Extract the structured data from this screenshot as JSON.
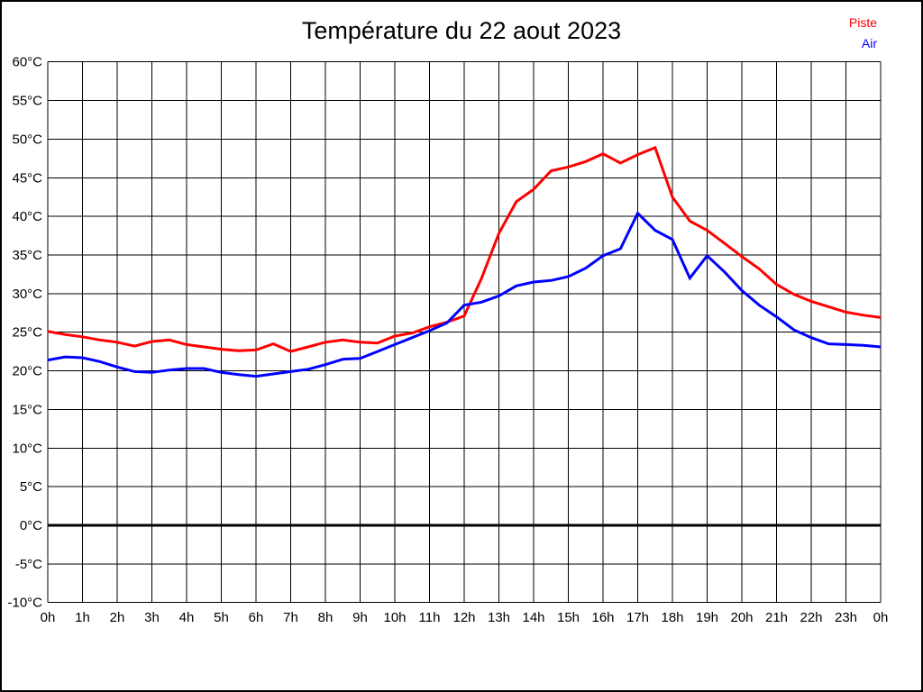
{
  "title": "Température du 22 aout 2023",
  "legend": [
    {
      "label": "Piste",
      "color": "#ff0000"
    },
    {
      "label": "Air",
      "color": "#0000ff"
    }
  ],
  "chart_data": {
    "type": "line",
    "title": "Température du 22 aout 2023",
    "xlabel": "",
    "ylabel": "",
    "xlim": [
      0,
      24
    ],
    "ylim": [
      -10,
      60
    ],
    "grid": true,
    "legend_position": "top-right",
    "x_tick_step_hours": 1,
    "y_tick_step_degrees": 5,
    "x_tick_labels": [
      "0h",
      "1h",
      "2h",
      "3h",
      "4h",
      "5h",
      "6h",
      "7h",
      "8h",
      "9h",
      "10h",
      "11h",
      "12h",
      "13h",
      "14h",
      "15h",
      "16h",
      "17h",
      "18h",
      "19h",
      "20h",
      "21h",
      "22h",
      "23h",
      "0h"
    ],
    "y_tick_labels": [
      "-10°C",
      "-5°C",
      "0°C",
      "5°C",
      "10°C",
      "15°C",
      "20°C",
      "25°C",
      "30°C",
      "35°C",
      "40°C",
      "45°C",
      "50°C",
      "55°C",
      "60°C"
    ],
    "zero_line": {
      "value": 0,
      "color": "#000000",
      "width": 3
    },
    "x": [
      0,
      0.5,
      1,
      1.5,
      2,
      2.5,
      3,
      3.5,
      4,
      4.5,
      5,
      5.5,
      6,
      6.5,
      7,
      7.5,
      8,
      8.5,
      9,
      9.5,
      10,
      10.5,
      11,
      11.5,
      12,
      12.5,
      13,
      13.5,
      14,
      14.5,
      15,
      15.5,
      16,
      16.5,
      17,
      17.5,
      18,
      18.5,
      19,
      19.5,
      20,
      20.5,
      21,
      21.5,
      22,
      22.5,
      23,
      23.5,
      24
    ],
    "series": [
      {
        "name": "Piste",
        "color": "#ff0000",
        "values": [
          25.1,
          24.7,
          24.4,
          24.0,
          23.7,
          23.2,
          23.8,
          24.0,
          23.4,
          23.1,
          22.8,
          22.6,
          22.7,
          23.5,
          22.5,
          23.1,
          23.7,
          24.0,
          23.7,
          23.6,
          24.5,
          24.9,
          25.7,
          26.3,
          27.1,
          32.0,
          37.8,
          41.9,
          43.5,
          45.9,
          46.4,
          47.1,
          48.1,
          46.9,
          48.0,
          48.9,
          42.5,
          39.4,
          38.2,
          36.5,
          34.8,
          33.2,
          31.2,
          29.9,
          29.0,
          28.3,
          27.6,
          27.2,
          26.9
        ]
      },
      {
        "name": "Air",
        "color": "#0000ff",
        "values": [
          21.4,
          21.8,
          21.7,
          21.2,
          20.5,
          19.9,
          19.8,
          20.1,
          20.3,
          20.3,
          19.8,
          19.5,
          19.3,
          19.6,
          19.9,
          20.2,
          20.8,
          21.5,
          21.6,
          22.5,
          23.4,
          24.3,
          25.2,
          26.2,
          28.5,
          28.9,
          29.7,
          31.0,
          31.5,
          31.7,
          32.2,
          33.3,
          34.9,
          35.8,
          40.4,
          38.2,
          37.0,
          32.0,
          34.9,
          32.8,
          30.4,
          28.5,
          27.0,
          25.3,
          24.3,
          23.5,
          23.4,
          23.3,
          23.1
        ]
      }
    ]
  }
}
